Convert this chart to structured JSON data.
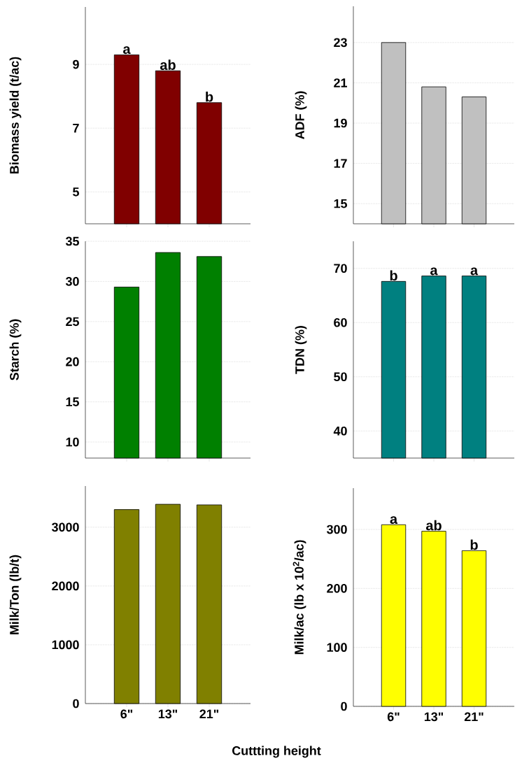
{
  "chart_data": [
    {
      "type": "bar",
      "categories": [
        null,
        null,
        null
      ],
      "values": [
        9.3,
        8.8,
        7.8
      ],
      "color": "#800000",
      "ylabel": "Biomass yield (t/ac)",
      "ylim": [
        4,
        10.8
      ],
      "yticks": [
        5,
        7,
        9
      ],
      "grid": "y",
      "tick_labels": "y",
      "annotations": [
        {
          "text": "a",
          "y": 9.3
        },
        {
          "text": "ab",
          "y": 8.8
        },
        {
          "text": "b",
          "y": 7.8
        }
      ]
    },
    {
      "type": "bar",
      "categories": [
        null,
        null,
        null
      ],
      "values": [
        23.0,
        20.8,
        20.3
      ],
      "color": "#c0c0c0",
      "ylabel": "ADF (%)",
      "ylim": [
        14,
        24.8
      ],
      "yticks": [
        15,
        17,
        19,
        21,
        23
      ],
      "grid": "y",
      "tick_labels": "y"
    },
    {
      "type": "bar",
      "categories": [
        null,
        null,
        null
      ],
      "values": [
        29.3,
        33.6,
        33.1
      ],
      "color": "#008000",
      "ylabel": "Starch (%)",
      "ylim": [
        8,
        35
      ],
      "yticks": [
        10,
        15,
        20,
        25,
        30,
        35
      ],
      "grid": "y",
      "tick_labels": "y"
    },
    {
      "type": "bar",
      "categories": [
        null,
        null,
        null
      ],
      "values": [
        67.6,
        68.6,
        68.6
      ],
      "color": "#008080",
      "ylabel": "TDN (%)",
      "ylim": [
        35,
        75
      ],
      "yticks": [
        40,
        50,
        60,
        70
      ],
      "grid": "y",
      "tick_labels": "y",
      "annotations": [
        {
          "text": "b",
          "y": 67.6
        },
        {
          "text": "a",
          "y": 68.6
        },
        {
          "text": "a",
          "y": 68.6
        }
      ]
    },
    {
      "type": "bar",
      "categories": [
        "6\"",
        "13\"",
        "21\""
      ],
      "values": [
        3300,
        3390,
        3380
      ],
      "color": "#808000",
      "ylabel": "Milk/Ton (lb/t)",
      "xlabel": "Cuttting height",
      "ylim": [
        0,
        3700
      ],
      "yticks": [
        0,
        1000,
        2000,
        3000
      ],
      "grid": "y"
    },
    {
      "type": "bar",
      "categories": [
        "6\"",
        "13\"",
        "21\""
      ],
      "values": [
        308,
        297,
        264
      ],
      "color": "#ffff00",
      "ylabel": "Milk/ac (lb x 10$^{2}$/ac)",
      "ylim": [
        0,
        370
      ],
      "yticks": [
        0,
        100,
        200,
        300
      ],
      "grid": "y",
      "annotations": [
        {
          "text": "a",
          "x": "6\"",
          "y": 308
        },
        {
          "text": "ab",
          "x": "13\"",
          "y": 297
        },
        {
          "text": "b",
          "x": "21\"",
          "y": 264
        }
      ]
    }
  ]
}
